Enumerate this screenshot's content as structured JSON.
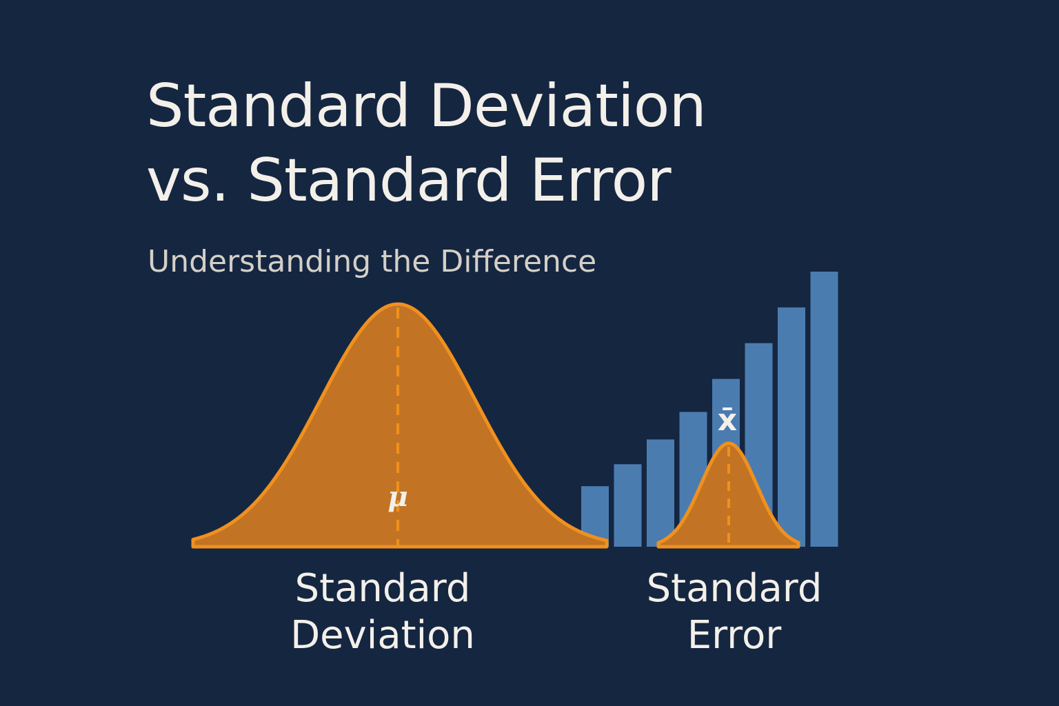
{
  "title": {
    "line1": "Standard Deviation",
    "line2": "vs. Standard Error"
  },
  "subtitle": "Understanding the Difference",
  "symbols": {
    "population_mean": "μ",
    "sample_mean": "x̄"
  },
  "labels": {
    "standard_deviation": {
      "line1": "Standard",
      "line2": "Deviation"
    },
    "standard_error": {
      "line1": "Standard",
      "line2": "Error"
    }
  },
  "colors": {
    "background": "#152641",
    "curve_fill": "#c27424",
    "curve_stroke": "#f0901e",
    "bars": "#4b7cb0",
    "text": "#f3f0ea",
    "subtitle_text": "#d4d0c8"
  },
  "bars": {
    "relative_heights": [
      0.22,
      0.3,
      0.39,
      0.49,
      0.61,
      0.74,
      0.87,
      1.0
    ]
  }
}
